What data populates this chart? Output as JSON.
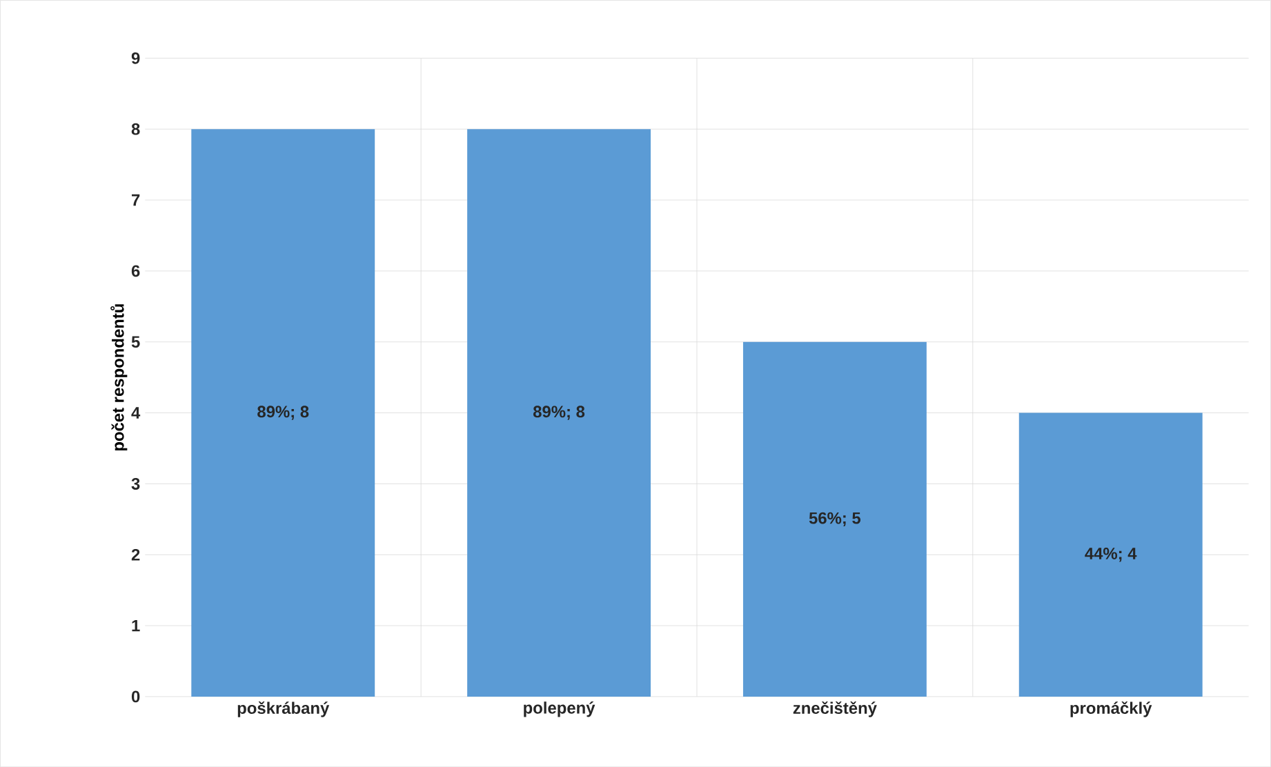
{
  "chart_data": {
    "type": "bar",
    "ylabel": "počet respondentů",
    "categories": [
      "poškrábaný",
      "polepený",
      "znečištěný",
      "promáčklý"
    ],
    "values": [
      8,
      8,
      5,
      4
    ],
    "value_labels": [
      "89%; 8",
      "89%; 8",
      "56%; 5",
      "44%; 4"
    ],
    "color": "#5b9bd5",
    "ylim": [
      0,
      9
    ],
    "yticks": [
      0,
      1,
      2,
      3,
      4,
      5,
      6,
      7,
      8,
      9
    ],
    "grid": true
  }
}
